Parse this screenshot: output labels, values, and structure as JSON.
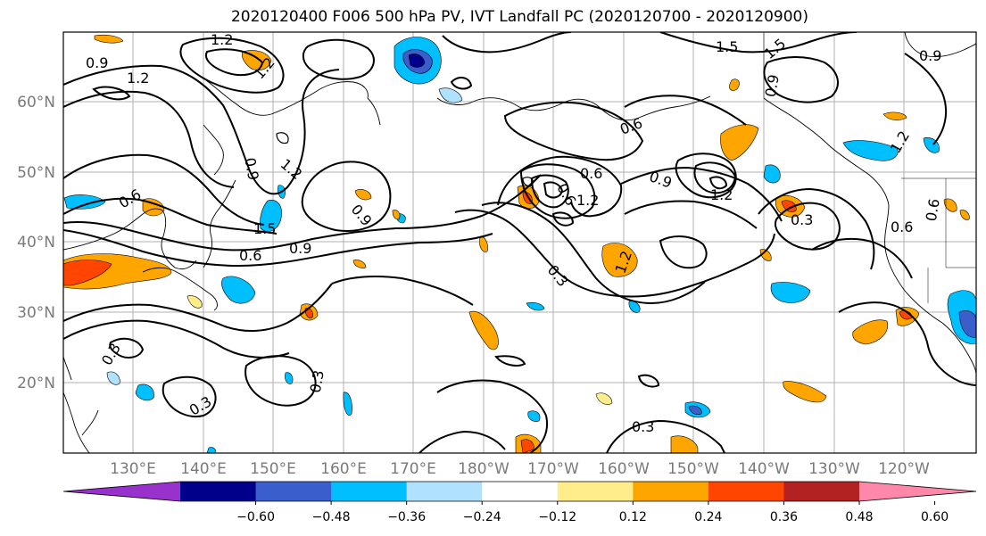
{
  "title": "2020120400 F006 500 hPa PV, IVT Landfall PC (2020120700 - 2020120900)",
  "lat_labels": [
    "60°N",
    "50°N",
    "40°N",
    "30°N",
    "20°N"
  ],
  "lon_labels": [
    "130°E",
    "140°E",
    "150°E",
    "160°E",
    "170°E",
    "180°W",
    "170°W",
    "160°W",
    "150°W",
    "140°W",
    "130°W",
    "120°W"
  ],
  "colorbar": {
    "colors": [
      "#9932cc",
      "#00008b",
      "#3a5fcd",
      "#00bfff",
      "#b0e2ff",
      "#ffffff",
      "#ffec8b",
      "#ffa500",
      "#ff4500",
      "#b22222",
      "#ff88aa"
    ],
    "tick_labels": [
      "−0.60",
      "−0.48",
      "−0.36",
      "−0.24",
      "−0.12",
      "0.12",
      "0.24",
      "0.36",
      "0.48",
      "0.60"
    ]
  },
  "contour_labels": [
    {
      "text": "1.2",
      "id": "c1"
    },
    {
      "text": "0.9",
      "id": "c2"
    },
    {
      "text": "1.2",
      "id": "c3"
    },
    {
      "text": "1.2",
      "id": "c4"
    },
    {
      "text": "1.5",
      "id": "c5"
    },
    {
      "text": "1.2",
      "id": "c6"
    },
    {
      "text": "0.9",
      "id": "c7"
    },
    {
      "text": "0.9",
      "id": "c8"
    },
    {
      "text": "0.9",
      "id": "c9"
    },
    {
      "text": "0.6",
      "id": "c10"
    },
    {
      "text": "0.6",
      "id": "c11"
    },
    {
      "text": "0.9",
      "id": "c12"
    },
    {
      "text": "1.2",
      "id": "c13"
    },
    {
      "text": "1.5",
      "id": "c14"
    },
    {
      "text": "0.6",
      "id": "c15"
    },
    {
      "text": "0.9",
      "id": "c16"
    },
    {
      "text": "0.6",
      "id": "c17"
    },
    {
      "text": "1.2",
      "id": "c18"
    },
    {
      "text": "1.5",
      "id": "c19"
    },
    {
      "text": "0.9",
      "id": "c20"
    },
    {
      "text": "1.2",
      "id": "c21"
    },
    {
      "text": "0.3",
      "id": "c22"
    },
    {
      "text": "0.3",
      "id": "c23"
    },
    {
      "text": "0.6",
      "id": "c24"
    },
    {
      "text": "0.3",
      "id": "c25"
    },
    {
      "text": "0.3",
      "id": "c26"
    },
    {
      "text": "0.3",
      "id": "c27"
    },
    {
      "text": "0.3",
      "id": "c28"
    },
    {
      "text": "0.9",
      "id": "c29"
    }
  ]
}
